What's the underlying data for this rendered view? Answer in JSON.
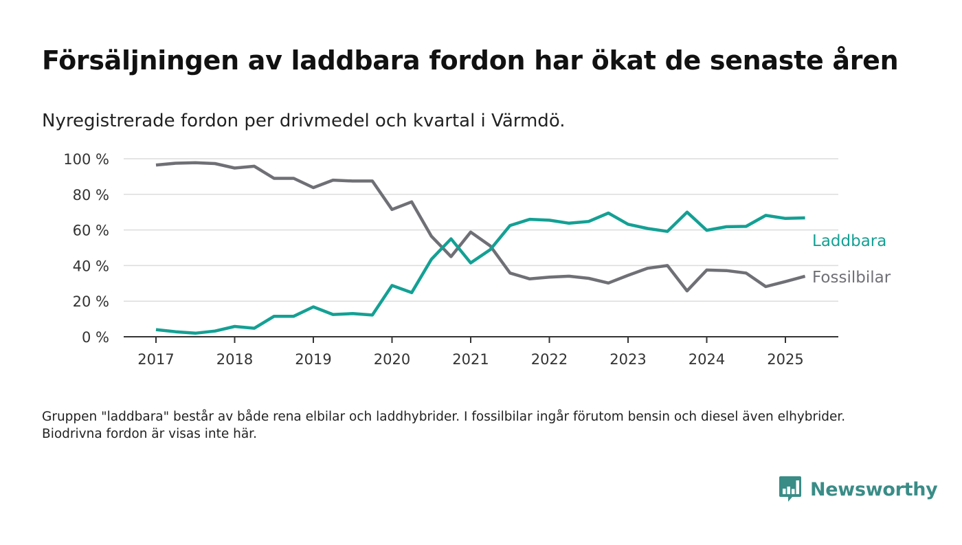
{
  "title": "Försäljningen av laddbara fordon har ökat de senaste åren",
  "subtitle": "Nyregistrerade fordon per drivmedel och kvartal i Värmdö.",
  "footnote": "Gruppen \"laddbara\" består av både rena elbilar och laddhybrider. I fossilbilar ingår förutom bensin och diesel även elhybrider. Biodrivna fordon är visas inte här.",
  "logo": {
    "text": "Newsworthy",
    "icon": "newsworthy-chart-bubble-icon",
    "color": "#3a8c87"
  },
  "chart_data": {
    "type": "line",
    "xlabel": "",
    "ylabel": "",
    "ylim": [
      0,
      100
    ],
    "xlim": [
      2017,
      2026
    ],
    "y_ticks": [
      0,
      20,
      40,
      60,
      80,
      100
    ],
    "y_tick_labels": [
      "0 %",
      "20 %",
      "40 %",
      "60 %",
      "80 %",
      "100 %"
    ],
    "x_ticks": [
      2017,
      2018,
      2019,
      2020,
      2021,
      2022,
      2023,
      2024,
      2025
    ],
    "x_tick_labels": [
      "2017",
      "2018",
      "2019",
      "2020",
      "2021",
      "2022",
      "2023",
      "2024",
      "2025"
    ],
    "grid": true,
    "legend": "direct labels at right end of lines",
    "x": [
      2017.0,
      2017.25,
      2017.5,
      2017.75,
      2018.0,
      2018.25,
      2018.5,
      2018.75,
      2019.0,
      2019.25,
      2019.5,
      2019.75,
      2020.0,
      2020.25,
      2020.5,
      2020.75,
      2021.0,
      2021.25,
      2021.5,
      2021.75,
      2022.0,
      2022.25,
      2022.5,
      2022.75,
      2023.0,
      2023.25,
      2023.5,
      2023.75,
      2024.0,
      2024.25,
      2024.5,
      2024.75,
      2025.0,
      2025.25
    ],
    "series": [
      {
        "name": "Laddbara",
        "color": "#14a094",
        "values": [
          4,
          2.8,
          2,
          3.2,
          5.8,
          4.8,
          11.5,
          11.5,
          16.8,
          12.5,
          13,
          12.2,
          28.8,
          24.8,
          43.5,
          55,
          41.5,
          49,
          62.5,
          66,
          65.5,
          63.8,
          64.8,
          69.5,
          63.2,
          60.8,
          59.2,
          70,
          59.8,
          61.8,
          62,
          68.2,
          66.5,
          66.8
        ]
      },
      {
        "name": "Fossilbilar",
        "color": "#6f6f76",
        "values": [
          96.5,
          97.5,
          97.8,
          97.3,
          94.8,
          95.8,
          89,
          89,
          83.8,
          88,
          87.5,
          87.5,
          71.5,
          75.8,
          56.5,
          45,
          58.8,
          51,
          35.8,
          32.5,
          33.5,
          34,
          32.8,
          30.2,
          34.5,
          38.5,
          40,
          25.8,
          37.5,
          37.2,
          35.8,
          28.2,
          31,
          34
        ]
      }
    ]
  }
}
